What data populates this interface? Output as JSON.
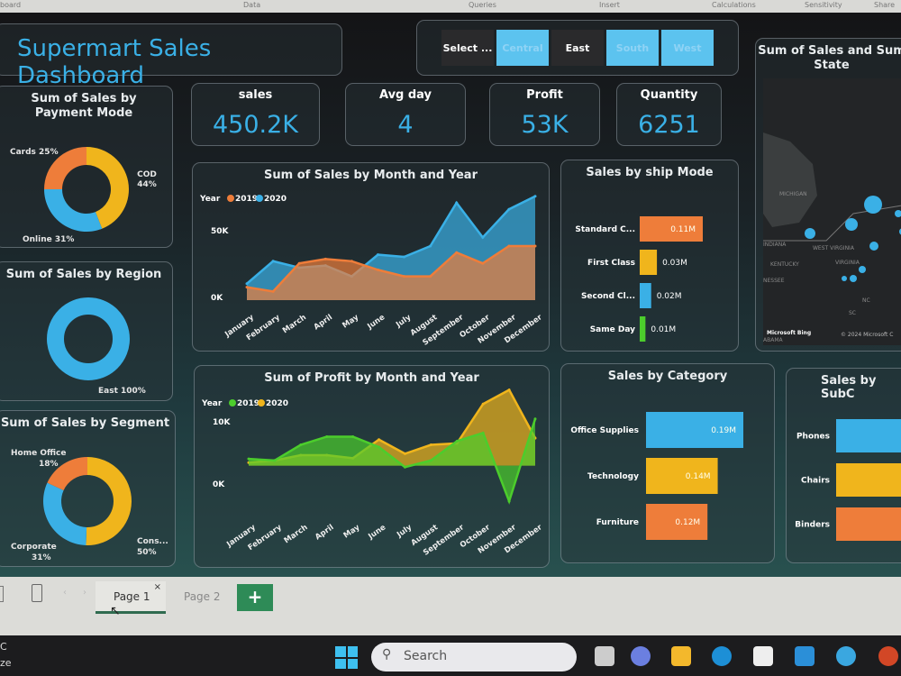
{
  "ribbon": {
    "tabs": [
      "board",
      "Data",
      "Queries",
      "Insert",
      "Calculations",
      "Sensitivity",
      "Share"
    ]
  },
  "header": {
    "title": "Supermart Sales Dashboard"
  },
  "slicer": {
    "items": [
      {
        "label": "Select ...",
        "selected": false
      },
      {
        "label": "Central",
        "selected": true
      },
      {
        "label": "East",
        "selected": false
      },
      {
        "label": "South",
        "selected": true
      },
      {
        "label": "West",
        "selected": true
      }
    ]
  },
  "kpis": [
    {
      "label": "sales",
      "value": "450.2K"
    },
    {
      "label": "Avg day",
      "value": "4"
    },
    {
      "label": "Profit",
      "value": "53K"
    },
    {
      "label": "Quantity",
      "value": "6251"
    }
  ],
  "map": {
    "title": "Sum of Sales and Sum State",
    "labels": [
      "MICHIGAN",
      "INDIANA",
      "KENTUCKY",
      "WEST VIRGINIA",
      "VIRGINIA",
      "NESSEE",
      "NC",
      "SC",
      "ABAMA"
    ],
    "brand": "Microsoft Bing",
    "copyright": "© 2024 Microsoft C"
  },
  "colors": {
    "blue": "#3ab0e6",
    "orange": "#ee7d3a",
    "yellow": "#f0b51c",
    "green": "#4ccd2c",
    "accent_green": "#2e8b57"
  },
  "chart_data": [
    {
      "type": "pie",
      "title": "Sum of Sales by Payment Mode",
      "slices": [
        {
          "name": "COD",
          "value": 44,
          "label": "COD 44%",
          "color": "#f0b51c"
        },
        {
          "name": "Online",
          "value": 31,
          "label": "Online 31%",
          "color": "#3ab0e6"
        },
        {
          "name": "Cards",
          "value": 25,
          "label": "Cards 25%",
          "color": "#ee7d3a"
        }
      ]
    },
    {
      "type": "pie",
      "title": "Sum of Sales by Region",
      "slices": [
        {
          "name": "East",
          "value": 100,
          "label": "East 100%",
          "color": "#3ab0e6"
        }
      ]
    },
    {
      "type": "pie",
      "title": "Sum of Sales by Segment",
      "slices": [
        {
          "name": "Consumer",
          "value": 50,
          "label": "Cons... 50%",
          "color": "#f0b51c"
        },
        {
          "name": "Corporate",
          "value": 31,
          "label": "Corporate 31%",
          "color": "#3ab0e6"
        },
        {
          "name": "Home Office",
          "value": 18,
          "label": "Home Office 18%",
          "color": "#ee7d3a"
        }
      ]
    },
    {
      "type": "area",
      "title": "Sum of Sales by Month and Year",
      "legend_title": "Year",
      "categories": [
        "January",
        "February",
        "March",
        "April",
        "May",
        "June",
        "July",
        "August",
        "September",
        "October",
        "November",
        "December"
      ],
      "yticks": [
        "0K",
        "50K"
      ],
      "ylim": [
        0,
        55000
      ],
      "series": [
        {
          "name": "2019",
          "color": "#ee7d3a",
          "values": [
            6000,
            4000,
            17000,
            19000,
            18000,
            14000,
            11000,
            11000,
            22000,
            17000,
            25000,
            25000
          ]
        },
        {
          "name": "2020",
          "color": "#3ab0e6",
          "values": [
            7600,
            18000,
            15000,
            16000,
            11000,
            21000,
            20000,
            25000,
            45000,
            29000,
            42000,
            48000
          ]
        }
      ]
    },
    {
      "type": "area",
      "title": "Sum of Profit by Month and Year",
      "legend_title": "Year",
      "categories": [
        "January",
        "February",
        "March",
        "April",
        "May",
        "June",
        "July",
        "August",
        "September",
        "October",
        "November",
        "December"
      ],
      "yticks": [
        "0K",
        "10K"
      ],
      "ylim": [
        -6000,
        11000
      ],
      "series": [
        {
          "name": "2019",
          "color": "#4ccd2c",
          "values": [
            900,
            700,
            2800,
            3900,
            3900,
            2500,
            -200,
            700,
            3300,
            4400,
            -4800,
            6300
          ]
        },
        {
          "name": "2020",
          "color": "#f0b51c",
          "values": [
            400,
            700,
            1400,
            1400,
            1000,
            3500,
            1600,
            2800,
            3000,
            8300,
            10200,
            3700
          ]
        }
      ]
    },
    {
      "type": "bar",
      "title": "Sales by ship Mode",
      "categories": [
        "Standard C...",
        "First Class",
        "Second Cl...",
        "Same Day"
      ],
      "values": [
        0.11,
        0.03,
        0.02,
        0.01
      ],
      "labels": [
        "0.11M",
        "0.03M",
        "0.02M",
        "0.01M"
      ],
      "colors": [
        "#ee7d3a",
        "#f0b51c",
        "#3ab0e6",
        "#4ccd2c"
      ]
    },
    {
      "type": "bar",
      "title": "Sales by Category",
      "categories": [
        "Office Supplies",
        "Technology",
        "Furniture"
      ],
      "values": [
        0.19,
        0.14,
        0.12
      ],
      "labels": [
        "0.19M",
        "0.14M",
        "0.12M"
      ],
      "colors": [
        "#3ab0e6",
        "#f0b51c",
        "#ee7d3a"
      ]
    },
    {
      "type": "bar",
      "title": "Sales by SubC",
      "categories": [
        "Phones",
        "Chairs",
        "Binders"
      ],
      "colors": [
        "#3ab0e6",
        "#f0b51c",
        "#ee7d3a"
      ]
    }
  ],
  "pages": {
    "tabs": [
      "Page 1",
      "Page 2"
    ],
    "close": "×",
    "add": "+"
  },
  "taskbar": {
    "search_placeholder": "Search",
    "left_text": [
      "C",
      "ze"
    ]
  }
}
